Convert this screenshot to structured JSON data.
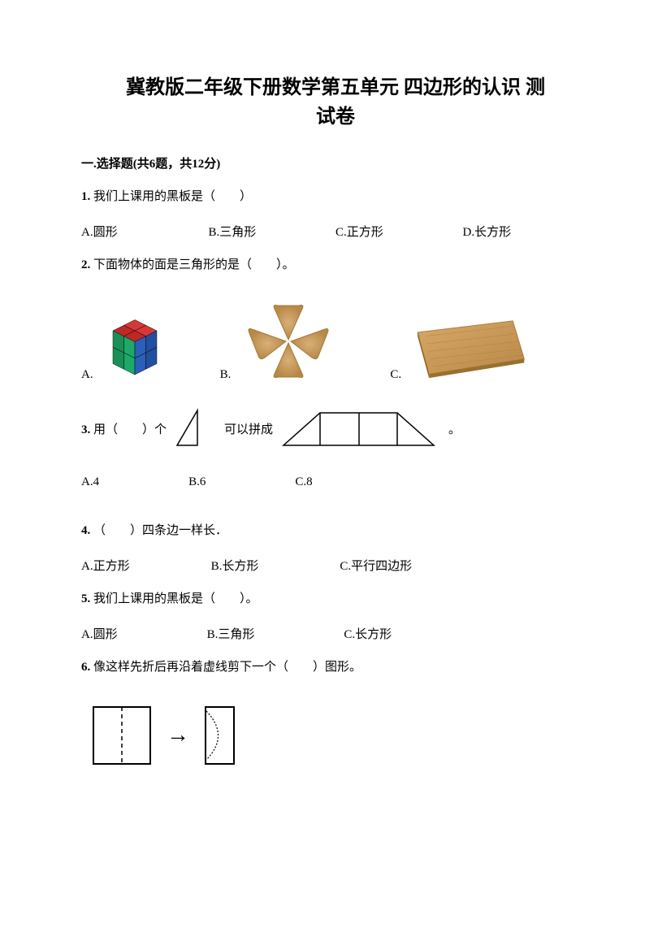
{
  "title": "冀教版二年级下册数学第五单元 四边形的认识 测\n试卷",
  "section1": {
    "header": "一.选择题(共6题，共12分)",
    "q1": {
      "text": "我们上课用的黑板是（　　）",
      "optA": "A.圆形",
      "optB": "B.三角形",
      "optC": "C.正方形",
      "optD": "D.长方形"
    },
    "q2": {
      "text": "下面物体的面是三角形的是（　　）。",
      "optA": "A.",
      "optB": "B.",
      "optC": "C."
    },
    "q3": {
      "prefix": "用（　　）个",
      "middle": "可以拼成",
      "suffix": "。",
      "optA": "A.4",
      "optB": "B.6",
      "optC": "C.8"
    },
    "q4": {
      "text": "（　　）四条边一样长．",
      "optA": "A.正方形",
      "optB": "B.长方形",
      "optC": "C.平行四边形"
    },
    "q5": {
      "text": "我们上课用的黑板是（　　）。",
      "optA": "A.圆形",
      "optB": "B.三角形",
      "optC": "C.长方形"
    },
    "q6": {
      "text": "像这样先折后再沿着虚线剪下一个（　　）图形。"
    }
  },
  "colors": {
    "text": "#000000",
    "cube_red": "#d63838",
    "cube_green": "#1ea968",
    "cube_blue": "#2b5fb8",
    "cookie": "#c89858",
    "cookie_dark": "#a87838",
    "board": "#c89050",
    "board_dark": "#a87830"
  }
}
